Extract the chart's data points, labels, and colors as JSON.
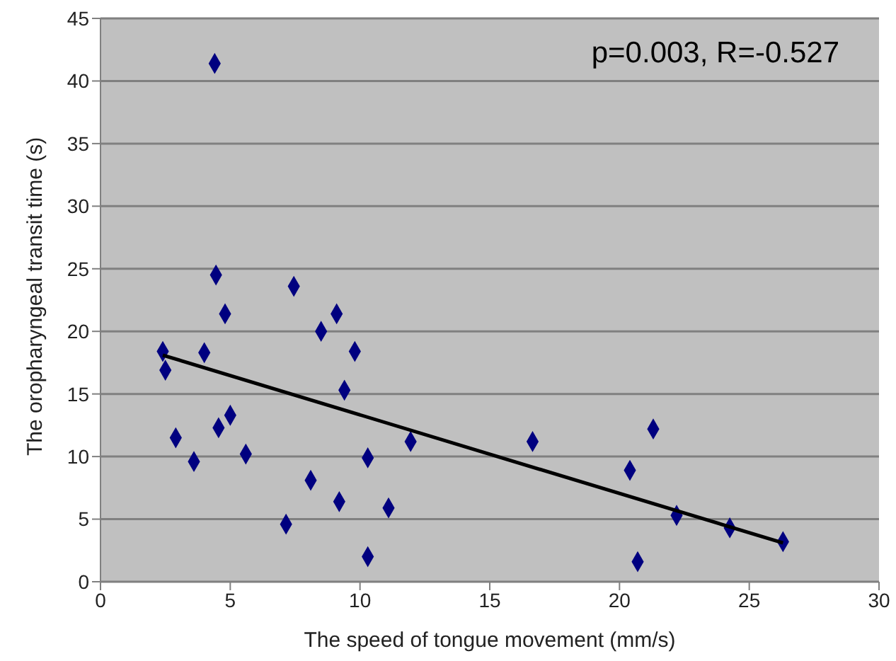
{
  "chart_data": {
    "type": "scatter",
    "xlabel": "The speed of tongue movement (mm/s)",
    "ylabel": "The oropharyngeal transit time (s)",
    "annotations": [
      "p=0.003, R=-0.527"
    ],
    "xlim": [
      0,
      30
    ],
    "xticks": [
      0,
      5,
      10,
      15,
      20,
      25,
      30
    ],
    "ylim": [
      0,
      45
    ],
    "yticks": [
      0,
      5,
      10,
      15,
      20,
      25,
      30,
      35,
      40,
      45
    ],
    "grid": "y",
    "marker": "diamond",
    "legend": false,
    "series": [
      {
        "color": "#000080",
        "x": [
          4.4,
          4.45,
          7.45,
          4.8,
          9.1,
          8.5,
          2.4,
          4.0,
          9.8,
          2.5,
          9.4,
          5.0,
          4.55,
          2.9,
          5.6,
          3.6,
          11.95,
          10.3,
          8.1,
          9.2,
          11.1,
          7.15,
          10.3,
          16.65,
          21.3,
          20.4,
          22.2,
          24.25,
          26.3,
          20.7
        ],
        "values": [
          41.4,
          24.5,
          23.6,
          21.4,
          21.4,
          20.0,
          18.4,
          18.3,
          18.4,
          16.9,
          15.3,
          13.3,
          12.3,
          11.5,
          10.2,
          9.6,
          11.2,
          9.9,
          8.1,
          6.4,
          5.9,
          4.6,
          2.0,
          11.2,
          12.2,
          8.9,
          5.3,
          4.3,
          3.2,
          1.6
        ]
      },
      {
        "type": "line",
        "color": "#000000",
        "marker": "none",
        "x": [
          2.4,
          26.3
        ],
        "values": [
          18.1,
          3.1
        ]
      }
    ]
  }
}
